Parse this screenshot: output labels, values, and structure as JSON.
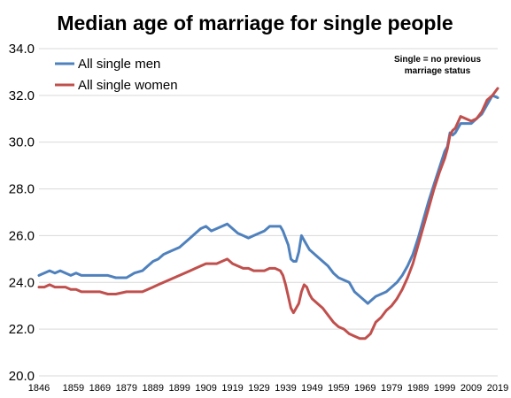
{
  "chart_data": {
    "type": "line",
    "title": "Median age of marriage for single people",
    "xlabel": "",
    "ylabel": "",
    "xlim": [
      1846,
      2019
    ],
    "ylim": [
      20.0,
      34.0
    ],
    "y_ticks": [
      "20.0",
      "22.0",
      "24.0",
      "26.0",
      "28.0",
      "30.0",
      "32.0",
      "34.0"
    ],
    "x_ticks": [
      "1846",
      "1859",
      "1869",
      "1879",
      "1889",
      "1899",
      "1909",
      "1919",
      "1929",
      "1939",
      "1949",
      "1959",
      "1969",
      "1979",
      "1989",
      "1999",
      "2009",
      "2019"
    ],
    "grid": true,
    "legend_position": "top-left",
    "annotation": [
      "Single = no previous",
      "marriage status"
    ],
    "series": [
      {
        "name": "All single men",
        "color": "#4f81bd",
        "points": [
          [
            1846,
            24.3
          ],
          [
            1848,
            24.4
          ],
          [
            1850,
            24.5
          ],
          [
            1852,
            24.4
          ],
          [
            1854,
            24.5
          ],
          [
            1856,
            24.4
          ],
          [
            1858,
            24.3
          ],
          [
            1860,
            24.4
          ],
          [
            1862,
            24.3
          ],
          [
            1866,
            24.3
          ],
          [
            1869,
            24.3
          ],
          [
            1872,
            24.3
          ],
          [
            1875,
            24.2
          ],
          [
            1879,
            24.2
          ],
          [
            1882,
            24.4
          ],
          [
            1885,
            24.5
          ],
          [
            1887,
            24.7
          ],
          [
            1889,
            24.9
          ],
          [
            1891,
            25.0
          ],
          [
            1893,
            25.2
          ],
          [
            1895,
            25.3
          ],
          [
            1897,
            25.4
          ],
          [
            1899,
            25.5
          ],
          [
            1901,
            25.7
          ],
          [
            1903,
            25.9
          ],
          [
            1905,
            26.1
          ],
          [
            1907,
            26.3
          ],
          [
            1909,
            26.4
          ],
          [
            1911,
            26.2
          ],
          [
            1913,
            26.3
          ],
          [
            1915,
            26.4
          ],
          [
            1917,
            26.5
          ],
          [
            1919,
            26.3
          ],
          [
            1921,
            26.1
          ],
          [
            1923,
            26.0
          ],
          [
            1925,
            25.9
          ],
          [
            1927,
            26.0
          ],
          [
            1929,
            26.1
          ],
          [
            1931,
            26.2
          ],
          [
            1933,
            26.4
          ],
          [
            1935,
            26.4
          ],
          [
            1937,
            26.4
          ],
          [
            1938,
            26.2
          ],
          [
            1939,
            25.9
          ],
          [
            1940,
            25.6
          ],
          [
            1941,
            25.0
          ],
          [
            1942,
            24.9
          ],
          [
            1943,
            24.9
          ],
          [
            1944,
            25.3
          ],
          [
            1945,
            26.0
          ],
          [
            1946,
            25.8
          ],
          [
            1947,
            25.6
          ],
          [
            1948,
            25.4
          ],
          [
            1949,
            25.3
          ],
          [
            1951,
            25.1
          ],
          [
            1953,
            24.9
          ],
          [
            1955,
            24.7
          ],
          [
            1957,
            24.4
          ],
          [
            1959,
            24.2
          ],
          [
            1961,
            24.1
          ],
          [
            1963,
            24.0
          ],
          [
            1965,
            23.6
          ],
          [
            1967,
            23.4
          ],
          [
            1969,
            23.2
          ],
          [
            1970,
            23.1
          ],
          [
            1971,
            23.2
          ],
          [
            1973,
            23.4
          ],
          [
            1975,
            23.5
          ],
          [
            1977,
            23.6
          ],
          [
            1979,
            23.8
          ],
          [
            1981,
            24.0
          ],
          [
            1983,
            24.3
          ],
          [
            1985,
            24.7
          ],
          [
            1987,
            25.2
          ],
          [
            1989,
            25.9
          ],
          [
            1991,
            26.7
          ],
          [
            1993,
            27.5
          ],
          [
            1995,
            28.2
          ],
          [
            1997,
            28.9
          ],
          [
            1999,
            29.6
          ],
          [
            2000,
            29.8
          ],
          [
            2001,
            30.4
          ],
          [
            2002,
            30.3
          ],
          [
            2003,
            30.4
          ],
          [
            2005,
            30.8
          ],
          [
            2007,
            30.8
          ],
          [
            2009,
            30.8
          ],
          [
            2011,
            31.0
          ],
          [
            2013,
            31.2
          ],
          [
            2015,
            31.6
          ],
          [
            2017,
            32.0
          ],
          [
            2019,
            31.9
          ]
        ]
      },
      {
        "name": "All single women",
        "color": "#c0504d",
        "points": [
          [
            1846,
            23.8
          ],
          [
            1848,
            23.8
          ],
          [
            1850,
            23.9
          ],
          [
            1852,
            23.8
          ],
          [
            1854,
            23.8
          ],
          [
            1856,
            23.8
          ],
          [
            1858,
            23.7
          ],
          [
            1860,
            23.7
          ],
          [
            1862,
            23.6
          ],
          [
            1866,
            23.6
          ],
          [
            1869,
            23.6
          ],
          [
            1872,
            23.5
          ],
          [
            1875,
            23.5
          ],
          [
            1879,
            23.6
          ],
          [
            1882,
            23.6
          ],
          [
            1885,
            23.6
          ],
          [
            1887,
            23.7
          ],
          [
            1889,
            23.8
          ],
          [
            1891,
            23.9
          ],
          [
            1893,
            24.0
          ],
          [
            1895,
            24.1
          ],
          [
            1897,
            24.2
          ],
          [
            1899,
            24.3
          ],
          [
            1901,
            24.4
          ],
          [
            1903,
            24.5
          ],
          [
            1905,
            24.6
          ],
          [
            1907,
            24.7
          ],
          [
            1909,
            24.8
          ],
          [
            1911,
            24.8
          ],
          [
            1913,
            24.8
          ],
          [
            1915,
            24.9
          ],
          [
            1917,
            25.0
          ],
          [
            1919,
            24.8
          ],
          [
            1921,
            24.7
          ],
          [
            1923,
            24.6
          ],
          [
            1925,
            24.6
          ],
          [
            1927,
            24.5
          ],
          [
            1929,
            24.5
          ],
          [
            1931,
            24.5
          ],
          [
            1933,
            24.6
          ],
          [
            1935,
            24.6
          ],
          [
            1937,
            24.5
          ],
          [
            1938,
            24.3
          ],
          [
            1939,
            23.9
          ],
          [
            1940,
            23.4
          ],
          [
            1941,
            22.9
          ],
          [
            1942,
            22.7
          ],
          [
            1943,
            22.9
          ],
          [
            1944,
            23.1
          ],
          [
            1945,
            23.6
          ],
          [
            1946,
            23.9
          ],
          [
            1947,
            23.8
          ],
          [
            1948,
            23.5
          ],
          [
            1949,
            23.3
          ],
          [
            1951,
            23.1
          ],
          [
            1953,
            22.9
          ],
          [
            1955,
            22.6
          ],
          [
            1957,
            22.3
          ],
          [
            1959,
            22.1
          ],
          [
            1961,
            22.0
          ],
          [
            1963,
            21.8
          ],
          [
            1965,
            21.7
          ],
          [
            1967,
            21.6
          ],
          [
            1969,
            21.6
          ],
          [
            1970,
            21.7
          ],
          [
            1971,
            21.8
          ],
          [
            1973,
            22.3
          ],
          [
            1975,
            22.5
          ],
          [
            1977,
            22.8
          ],
          [
            1979,
            23.0
          ],
          [
            1981,
            23.3
          ],
          [
            1983,
            23.7
          ],
          [
            1985,
            24.2
          ],
          [
            1987,
            24.8
          ],
          [
            1989,
            25.6
          ],
          [
            1991,
            26.4
          ],
          [
            1993,
            27.2
          ],
          [
            1995,
            28.0
          ],
          [
            1997,
            28.7
          ],
          [
            1999,
            29.3
          ],
          [
            2000,
            29.7
          ],
          [
            2001,
            30.3
          ],
          [
            2002,
            30.5
          ],
          [
            2003,
            30.6
          ],
          [
            2005,
            31.1
          ],
          [
            2007,
            31.0
          ],
          [
            2009,
            30.9
          ],
          [
            2011,
            31.0
          ],
          [
            2013,
            31.3
          ],
          [
            2015,
            31.8
          ],
          [
            2017,
            32.0
          ],
          [
            2019,
            32.3
          ]
        ]
      }
    ]
  }
}
